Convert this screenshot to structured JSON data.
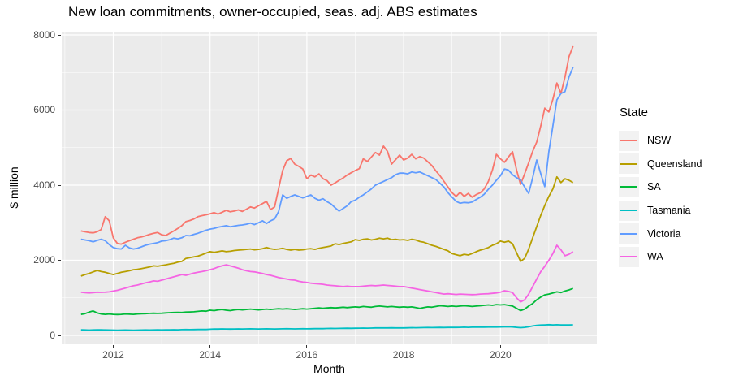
{
  "title": "New loan commitments, owner-occupied, seas. adj. ABS estimates",
  "legend": {
    "title": "State",
    "items": [
      {
        "label": "NSW",
        "color": "#F8766D"
      },
      {
        "label": "Queensland",
        "color": "#B79F00"
      },
      {
        "label": "SA",
        "color": "#00BA38"
      },
      {
        "label": "Tasmania",
        "color": "#00BFC4"
      },
      {
        "label": "Victoria",
        "color": "#619CFF"
      },
      {
        "label": "WA",
        "color": "#F564E3"
      }
    ]
  },
  "theme": {
    "panel_background": "#EBEBEB",
    "grid_color": "#FFFFFF",
    "tick_color": "#333333",
    "tick_label_color": "#4d4d4d"
  },
  "chart_data": {
    "type": "line",
    "title": "New loan commitments, owner-occupied, seas. adj. ABS estimates",
    "xlabel": "Month",
    "ylabel": "$ million",
    "x_unit": "year (monthly data)",
    "x_start": 2011.3333,
    "x_step": 0.0833333,
    "ylim": [
      0,
      8000
    ],
    "xlim_panel": [
      2010.93,
      2022.0
    ],
    "grid": true,
    "legend_position": "right",
    "x_ticks": [
      2012,
      2014,
      2016,
      2018,
      2020
    ],
    "x_tick_labels": [
      "2012",
      "2014",
      "2016",
      "2018",
      "2020"
    ],
    "x_minor": [
      2011,
      2013,
      2015,
      2017,
      2019,
      2021
    ],
    "y_ticks": [
      0,
      2000,
      4000,
      6000,
      8000
    ],
    "y_tick_labels": [
      "0",
      "2000",
      "4000",
      "6000",
      "8000"
    ],
    "y_minor": [
      1000,
      3000,
      5000,
      7000
    ],
    "series": [
      {
        "name": "NSW",
        "color": "#F8766D",
        "values": [
          2780,
          2760,
          2740,
          2730,
          2760,
          2820,
          3160,
          3050,
          2600,
          2450,
          2430,
          2480,
          2520,
          2560,
          2600,
          2620,
          2650,
          2690,
          2720,
          2740,
          2680,
          2660,
          2720,
          2780,
          2850,
          2920,
          3030,
          3060,
          3100,
          3160,
          3190,
          3210,
          3240,
          3270,
          3230,
          3280,
          3330,
          3290,
          3310,
          3340,
          3300,
          3360,
          3420,
          3390,
          3450,
          3510,
          3570,
          3350,
          3420,
          3910,
          4390,
          4650,
          4710,
          4560,
          4500,
          4430,
          4170,
          4270,
          4220,
          4300,
          4170,
          4120,
          4000,
          4060,
          4130,
          4190,
          4270,
          4330,
          4390,
          4440,
          4700,
          4630,
          4750,
          4870,
          4800,
          5040,
          4900,
          4560,
          4680,
          4800,
          4670,
          4720,
          4820,
          4700,
          4760,
          4720,
          4620,
          4520,
          4380,
          4250,
          4100,
          3950,
          3800,
          3700,
          3810,
          3700,
          3780,
          3680,
          3750,
          3800,
          3900,
          4100,
          4400,
          4820,
          4700,
          4610,
          4750,
          4890,
          4400,
          4020,
          4300,
          4600,
          4900,
          5150,
          5580,
          6050,
          5950,
          6290,
          6720,
          6440,
          6880,
          7420,
          7700
        ]
      },
      {
        "name": "Queensland",
        "color": "#B79F00",
        "values": [
          1580,
          1620,
          1650,
          1690,
          1730,
          1700,
          1680,
          1650,
          1620,
          1650,
          1680,
          1700,
          1720,
          1750,
          1760,
          1780,
          1800,
          1820,
          1850,
          1840,
          1860,
          1880,
          1900,
          1920,
          1950,
          1970,
          2050,
          2070,
          2090,
          2110,
          2150,
          2190,
          2230,
          2210,
          2230,
          2250,
          2230,
          2240,
          2260,
          2270,
          2280,
          2290,
          2300,
          2280,
          2290,
          2310,
          2340,
          2310,
          2290,
          2300,
          2320,
          2290,
          2270,
          2290,
          2270,
          2280,
          2300,
          2310,
          2290,
          2320,
          2340,
          2360,
          2380,
          2440,
          2420,
          2450,
          2470,
          2490,
          2550,
          2530,
          2560,
          2570,
          2540,
          2560,
          2590,
          2570,
          2590,
          2550,
          2560,
          2540,
          2550,
          2530,
          2560,
          2540,
          2500,
          2480,
          2440,
          2400,
          2370,
          2330,
          2290,
          2250,
          2180,
          2150,
          2120,
          2160,
          2140,
          2180,
          2230,
          2270,
          2300,
          2340,
          2400,
          2440,
          2510,
          2480,
          2510,
          2440,
          2200,
          1970,
          2050,
          2300,
          2600,
          2900,
          3200,
          3460,
          3700,
          3900,
          4220,
          4070,
          4170,
          4130,
          4070
        ]
      },
      {
        "name": "SA",
        "color": "#00BA38",
        "values": [
          560,
          580,
          620,
          650,
          600,
          570,
          560,
          570,
          560,
          555,
          560,
          570,
          565,
          560,
          570,
          575,
          580,
          585,
          590,
          585,
          590,
          600,
          605,
          610,
          615,
          610,
          620,
          625,
          630,
          640,
          650,
          645,
          670,
          660,
          680,
          690,
          670,
          660,
          680,
          690,
          680,
          690,
          700,
          690,
          680,
          690,
          700,
          690,
          700,
          710,
          700,
          710,
          700,
          690,
          700,
          710,
          700,
          710,
          720,
          730,
          720,
          730,
          740,
          730,
          740,
          750,
          740,
          750,
          760,
          750,
          770,
          760,
          750,
          770,
          780,
          770,
          760,
          770,
          760,
          750,
          760,
          750,
          760,
          740,
          720,
          740,
          760,
          750,
          770,
          790,
          780,
          770,
          780,
          770,
          780,
          790,
          780,
          770,
          780,
          790,
          800,
          810,
          800,
          820,
          810,
          820,
          800,
          780,
          720,
          660,
          700,
          780,
          850,
          950,
          1020,
          1080,
          1100,
          1130,
          1160,
          1140,
          1180,
          1210,
          1250
        ]
      },
      {
        "name": "Tasmania",
        "color": "#00BFC4",
        "values": [
          150,
          145,
          140,
          145,
          150,
          148,
          145,
          142,
          140,
          138,
          140,
          142,
          140,
          138,
          140,
          142,
          145,
          143,
          145,
          147,
          145,
          148,
          150,
          152,
          150,
          153,
          155,
          153,
          155,
          158,
          160,
          158,
          165,
          170,
          168,
          172,
          170,
          168,
          170,
          172,
          170,
          172,
          175,
          172,
          170,
          172,
          175,
          172,
          170,
          172,
          175,
          178,
          175,
          172,
          175,
          178,
          175,
          178,
          180,
          182,
          180,
          183,
          185,
          183,
          185,
          188,
          190,
          188,
          190,
          192,
          195,
          193,
          195,
          198,
          200,
          198,
          200,
          202,
          200,
          198,
          200,
          202,
          205,
          203,
          205,
          208,
          210,
          208,
          210,
          212,
          210,
          212,
          215,
          212,
          215,
          218,
          215,
          218,
          220,
          218,
          220,
          222,
          225,
          222,
          225,
          228,
          230,
          225,
          215,
          205,
          215,
          230,
          250,
          265,
          275,
          280,
          285,
          280,
          283,
          280,
          278,
          280,
          282
        ]
      },
      {
        "name": "Victoria",
        "color": "#619CFF",
        "values": [
          2560,
          2540,
          2520,
          2490,
          2530,
          2560,
          2520,
          2420,
          2340,
          2310,
          2300,
          2400,
          2330,
          2300,
          2320,
          2360,
          2400,
          2430,
          2450,
          2470,
          2510,
          2520,
          2550,
          2590,
          2570,
          2600,
          2660,
          2650,
          2690,
          2720,
          2760,
          2800,
          2830,
          2850,
          2880,
          2900,
          2920,
          2890,
          2910,
          2930,
          2940,
          2960,
          2990,
          2950,
          3000,
          3050,
          2980,
          3050,
          3100,
          3300,
          3740,
          3650,
          3700,
          3740,
          3700,
          3660,
          3700,
          3740,
          3650,
          3600,
          3640,
          3560,
          3500,
          3400,
          3310,
          3380,
          3450,
          3560,
          3600,
          3680,
          3740,
          3820,
          3900,
          4000,
          4050,
          4100,
          4150,
          4200,
          4280,
          4320,
          4320,
          4300,
          4350,
          4330,
          4350,
          4300,
          4250,
          4200,
          4150,
          4050,
          3950,
          3800,
          3680,
          3570,
          3520,
          3540,
          3530,
          3550,
          3620,
          3680,
          3760,
          3890,
          4000,
          4130,
          4250,
          4430,
          4400,
          4280,
          4200,
          4130,
          3950,
          3780,
          4200,
          4670,
          4300,
          3960,
          4890,
          5580,
          6270,
          6440,
          6490,
          6880,
          7140
        ]
      },
      {
        "name": "WA",
        "color": "#F564E3",
        "values": [
          1150,
          1140,
          1130,
          1140,
          1150,
          1145,
          1150,
          1160,
          1180,
          1200,
          1230,
          1260,
          1290,
          1320,
          1340,
          1370,
          1400,
          1420,
          1450,
          1440,
          1470,
          1500,
          1530,
          1560,
          1590,
          1620,
          1600,
          1630,
          1660,
          1680,
          1700,
          1720,
          1750,
          1780,
          1820,
          1850,
          1880,
          1850,
          1820,
          1790,
          1750,
          1720,
          1700,
          1690,
          1670,
          1650,
          1620,
          1600,
          1570,
          1540,
          1520,
          1500,
          1480,
          1470,
          1440,
          1420,
          1410,
          1390,
          1380,
          1370,
          1360,
          1340,
          1330,
          1320,
          1310,
          1300,
          1310,
          1300,
          1300,
          1300,
          1310,
          1320,
          1330,
          1320,
          1330,
          1340,
          1330,
          1320,
          1310,
          1300,
          1300,
          1280,
          1260,
          1240,
          1220,
          1200,
          1180,
          1160,
          1140,
          1120,
          1100,
          1110,
          1100,
          1090,
          1100,
          1095,
          1090,
          1085,
          1090,
          1100,
          1105,
          1110,
          1120,
          1130,
          1150,
          1190,
          1170,
          1140,
          1000,
          890,
          950,
          1100,
          1300,
          1500,
          1700,
          1840,
          2000,
          2180,
          2400,
          2280,
          2120,
          2160,
          2230
        ]
      }
    ]
  }
}
